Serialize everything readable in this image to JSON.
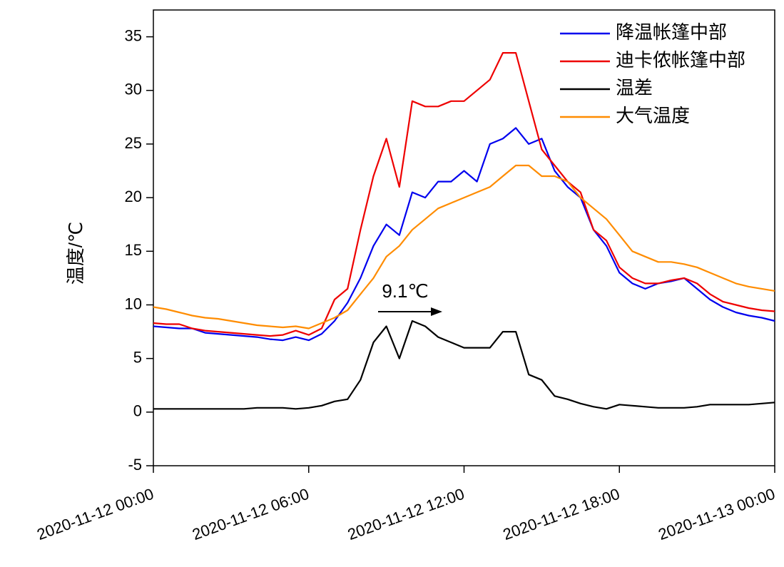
{
  "chart_data": {
    "type": "line",
    "ylabel": "温度/℃",
    "annotation": "9.1℃",
    "x": [
      "2020-11-12 00:00",
      "2020-11-12 00:30",
      "2020-11-12 01:00",
      "2020-11-12 01:30",
      "2020-11-12 02:00",
      "2020-11-12 02:30",
      "2020-11-12 03:00",
      "2020-11-12 03:30",
      "2020-11-12 04:00",
      "2020-11-12 04:30",
      "2020-11-12 05:00",
      "2020-11-12 05:30",
      "2020-11-12 06:00",
      "2020-11-12 06:30",
      "2020-11-12 07:00",
      "2020-11-12 07:30",
      "2020-11-12 08:00",
      "2020-11-12 08:30",
      "2020-11-12 09:00",
      "2020-11-12 09:30",
      "2020-11-12 10:00",
      "2020-11-12 10:30",
      "2020-11-12 11:00",
      "2020-11-12 11:30",
      "2020-11-12 12:00",
      "2020-11-12 12:30",
      "2020-11-12 13:00",
      "2020-11-12 13:30",
      "2020-11-12 14:00",
      "2020-11-12 14:30",
      "2020-11-12 15:00",
      "2020-11-12 15:30",
      "2020-11-12 16:00",
      "2020-11-12 16:30",
      "2020-11-12 17:00",
      "2020-11-12 17:30",
      "2020-11-12 18:00",
      "2020-11-12 18:30",
      "2020-11-12 19:00",
      "2020-11-12 19:30",
      "2020-11-12 20:00",
      "2020-11-12 20:30",
      "2020-11-12 21:00",
      "2020-11-12 21:30",
      "2020-11-12 22:00",
      "2020-11-12 22:30",
      "2020-11-12 23:00",
      "2020-11-12 23:30",
      "2020-11-13 00:00"
    ],
    "series": [
      {
        "name": "降温帐篷中部",
        "color": "#0000ee",
        "values": [
          8.0,
          7.9,
          7.8,
          7.8,
          7.4,
          7.3,
          7.2,
          7.1,
          7.0,
          6.8,
          6.7,
          7.0,
          6.7,
          7.3,
          8.5,
          10.2,
          12.5,
          15.5,
          17.5,
          16.5,
          20.5,
          20.0,
          21.5,
          21.5,
          22.5,
          21.5,
          25.0,
          25.5,
          26.5,
          25.0,
          25.5,
          22.5,
          21.0,
          20.0,
          17.0,
          15.5,
          13.0,
          12.0,
          11.5,
          12.0,
          12.2,
          12.5,
          11.5,
          10.5,
          9.8,
          9.3,
          9.0,
          8.8,
          8.5
        ]
      },
      {
        "name": "迪卡侬帐篷中部",
        "color": "#ee0000",
        "values": [
          8.3,
          8.2,
          8.2,
          7.8,
          7.6,
          7.5,
          7.4,
          7.3,
          7.2,
          7.1,
          7.2,
          7.6,
          7.2,
          7.8,
          10.5,
          11.5,
          17.0,
          22.0,
          25.5,
          21.0,
          29.0,
          28.5,
          28.5,
          29.0,
          29.0,
          30.0,
          31.0,
          33.5,
          33.5,
          29.0,
          24.5,
          23.0,
          21.5,
          20.5,
          17.0,
          16.0,
          13.5,
          12.5,
          12.0,
          12.0,
          12.3,
          12.5,
          12.0,
          11.0,
          10.3,
          10.0,
          9.7,
          9.5,
          9.4
        ]
      },
      {
        "name": "温差",
        "color": "#000000",
        "values": [
          0.3,
          0.3,
          0.3,
          0.3,
          0.3,
          0.3,
          0.3,
          0.3,
          0.4,
          0.4,
          0.4,
          0.3,
          0.4,
          0.6,
          1.0,
          1.2,
          3.0,
          6.5,
          8.0,
          5.0,
          8.5,
          8.0,
          7.0,
          6.5,
          6.0,
          6.0,
          6.0,
          7.5,
          7.5,
          3.5,
          3.0,
          1.5,
          1.2,
          0.8,
          0.5,
          0.3,
          0.7,
          0.6,
          0.5,
          0.4,
          0.4,
          0.4,
          0.5,
          0.7,
          0.7,
          0.7,
          0.7,
          0.8,
          0.9
        ]
      },
      {
        "name": "大气温度",
        "color": "#ff8c00",
        "values": [
          9.8,
          9.6,
          9.3,
          9.0,
          8.8,
          8.7,
          8.5,
          8.3,
          8.1,
          8.0,
          7.9,
          8.0,
          7.8,
          8.3,
          8.8,
          9.5,
          11.0,
          12.5,
          14.5,
          15.5,
          17.0,
          18.0,
          19.0,
          19.5,
          20.0,
          20.5,
          21.0,
          22.0,
          23.0,
          23.0,
          22.0,
          22.0,
          21.5,
          20.0,
          19.0,
          18.0,
          16.5,
          15.0,
          14.5,
          14.0,
          14.0,
          13.8,
          13.5,
          13.0,
          12.5,
          12.0,
          11.7,
          11.5,
          11.3
        ]
      }
    ],
    "xlim": [
      "2020-11-12 00:00",
      "2020-11-13 00:00"
    ],
    "xticks": [
      "2020-11-12 00:00",
      "2020-11-12 06:00",
      "2020-11-12 12:00",
      "2020-11-12 18:00",
      "2020-11-13 00:00"
    ],
    "ylim": [
      -5,
      37.5
    ],
    "yticks": [
      -5,
      0,
      5,
      10,
      15,
      20,
      25,
      30,
      35
    ],
    "legend": "top-right"
  }
}
